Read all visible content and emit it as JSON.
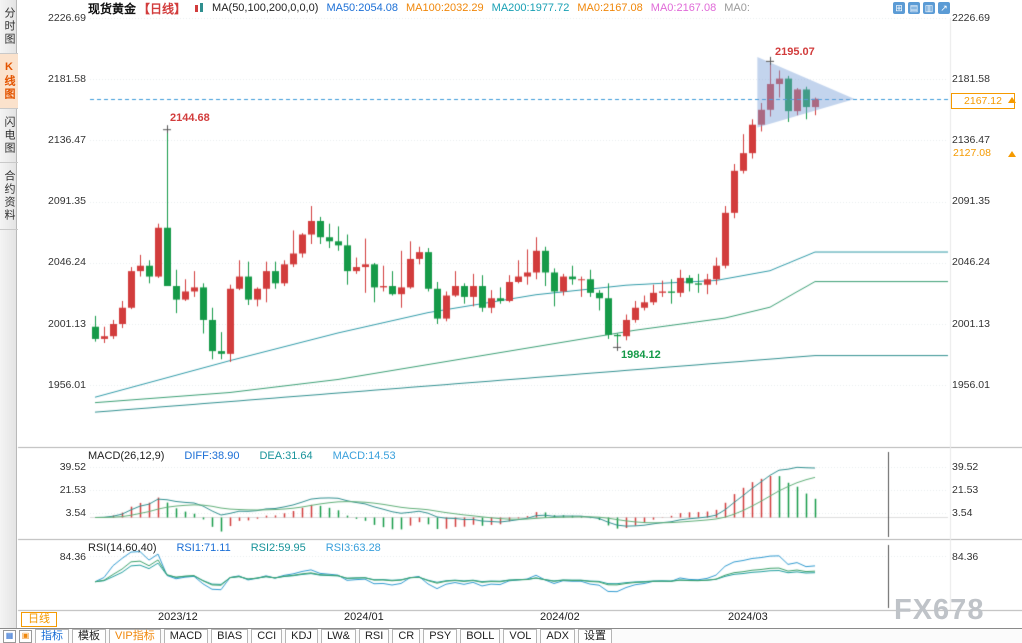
{
  "app": {
    "watermark": "FX678"
  },
  "sidebar": {
    "items": [
      {
        "label": "分时图"
      },
      {
        "label": "K线图"
      },
      {
        "label": "闪电图"
      },
      {
        "label": "合约资料"
      }
    ]
  },
  "header": {
    "symbol": "现货黄金",
    "period_tag": "【日线】",
    "ma_settings": "MA(50,100,200,0,0,0)",
    "ma_values": [
      {
        "label": "MA50:2054.08",
        "color": "#1b6fd6"
      },
      {
        "label": "MA100:2032.29",
        "color": "#f0870a"
      },
      {
        "label": "MA200:1977.72",
        "color": "#18a0b4"
      },
      {
        "label": "MA0:2167.08",
        "color": "#f0870a"
      },
      {
        "label": "MA0:2167.08",
        "color": "#e06ad8"
      },
      {
        "label": "MA0:",
        "color": "#9a9a9a"
      }
    ],
    "tool_icons": [
      {
        "name": "grid-plus-icon",
        "glyph": "⊞"
      },
      {
        "name": "hbar-chart-icon",
        "glyph": "▤"
      },
      {
        "name": "vbar-chart-icon",
        "glyph": "▥"
      },
      {
        "name": "trend-arrow-icon",
        "glyph": "↗"
      }
    ]
  },
  "macd_panel": {
    "title": "MACD(26,12,9)",
    "labels": [
      {
        "text": "DIFF:38.90",
        "color": "#1b6fd6"
      },
      {
        "text": "DEA:31.64",
        "color": "#18939a"
      },
      {
        "text": "MACD:14.53",
        "color": "#3aa0dc"
      }
    ]
  },
  "rsi_panel": {
    "title": "RSI(14,60,40)",
    "labels": [
      {
        "text": "RSI1:71.11",
        "color": "#1b6fd6"
      },
      {
        "text": "RSI2:59.95",
        "color": "#18939a"
      },
      {
        "text": "RSI3:63.28",
        "color": "#3aa0dc"
      }
    ]
  },
  "bottom": {
    "period_label": "日线",
    "period_icon_glyph": "▤",
    "toolbar_icons": [
      {
        "name": "indicator-grid-icon",
        "glyph": "▦"
      },
      {
        "name": "style-box-icon",
        "glyph": "▣"
      }
    ],
    "tabs": [
      {
        "label": "指标",
        "color": "#1b6fd6"
      },
      {
        "label": "模板"
      },
      {
        "label": "VIP指标",
        "color": "#f0870a"
      },
      {
        "label": "MACD"
      },
      {
        "label": "BIAS"
      },
      {
        "label": "CCI"
      },
      {
        "label": "KDJ"
      },
      {
        "label": "LW&"
      },
      {
        "label": "RSI"
      },
      {
        "label": "CR"
      },
      {
        "label": "PSY"
      },
      {
        "label": "BOLL"
      },
      {
        "label": "VOL"
      },
      {
        "label": "ADX"
      },
      {
        "label": "设置"
      }
    ]
  },
  "chart_data": {
    "type": "candlestick",
    "title": "现货黄金 日线 (Spot Gold, Daily)",
    "y_tick_labels": [
      "2226.69",
      "2181.58",
      "2136.47",
      "2091.35",
      "2046.24",
      "2001.13",
      "1956.01"
    ],
    "y_ticks": [
      2226.69,
      2181.58,
      2136.47,
      2091.35,
      2046.24,
      2001.13,
      1956.01
    ],
    "ylim": [
      1909,
      2226.69
    ],
    "grid": "dotted-horizontal",
    "current_price": 2167.12,
    "current_price_label": "2167.12",
    "reference_price_label": "2127.08",
    "month_ticks": [
      {
        "label": "2023/12",
        "index": 7
      },
      {
        "label": "2024/01",
        "index": 27
      },
      {
        "label": "2024/02",
        "index": 49
      },
      {
        "label": "2024/03",
        "index": 70
      }
    ],
    "annotations": [
      {
        "label": "2144.68",
        "price": 2144.68,
        "index": 8,
        "kind": "swing-high",
        "color": "#d23c3c"
      },
      {
        "label": "2195.07",
        "price": 2195.07,
        "index": 75,
        "kind": "swing-high",
        "color": "#d23c3c"
      },
      {
        "label": "1984.12",
        "price": 1984.12,
        "index": 58,
        "kind": "swing-low",
        "color": "#159a48"
      }
    ],
    "pattern": {
      "type": "pennant",
      "from_index": 73.6,
      "top": 2198,
      "bottom": 2146,
      "apex_index": 84.4,
      "apex": 2167,
      "fill": "rgba(122,160,214,0.45)"
    },
    "colors": {
      "up": "#d23c3c",
      "down": "#159a48",
      "price_line": "#3a9ad9"
    },
    "ohlc": [
      [
        1999,
        2007,
        1988,
        1990
      ],
      [
        1990,
        1999,
        1987,
        1992
      ],
      [
        1992,
        2004,
        1990,
        2001
      ],
      [
        2001,
        2018,
        1998,
        2013
      ],
      [
        2013,
        2043,
        2012,
        2040
      ],
      [
        2040,
        2052,
        2036,
        2044
      ],
      [
        2044,
        2048,
        2031,
        2036
      ],
      [
        2036,
        2075,
        2035,
        2072
      ],
      [
        2072,
        2144.68,
        2064,
        2029
      ],
      [
        2029,
        2041,
        2009,
        2019
      ],
      [
        2019,
        2034,
        2018,
        2025
      ],
      [
        2025,
        2040,
        2021,
        2028
      ],
      [
        2028,
        2031,
        1994,
        2004
      ],
      [
        2004,
        2013,
        1975,
        1981
      ],
      [
        1981,
        1995,
        1975,
        1979
      ],
      [
        1979,
        2030,
        1973,
        2027
      ],
      [
        2027,
        2048,
        2026,
        2036
      ],
      [
        2036,
        2047,
        2015,
        2019
      ],
      [
        2019,
        2028,
        2014,
        2027
      ],
      [
        2027,
        2047,
        2017,
        2040
      ],
      [
        2040,
        2047,
        2027,
        2031
      ],
      [
        2031,
        2048,
        2029,
        2045
      ],
      [
        2045,
        2070,
        2043,
        2053
      ],
      [
        2053,
        2068,
        2050,
        2067
      ],
      [
        2067,
        2088,
        2060,
        2077
      ],
      [
        2077,
        2080,
        2060,
        2065
      ],
      [
        2065,
        2075,
        2057,
        2062
      ],
      [
        2062,
        2073,
        2055,
        2059
      ],
      [
        2059,
        2067,
        2030,
        2040
      ],
      [
        2040,
        2050,
        2038,
        2043
      ],
      [
        2043,
        2064,
        2024,
        2045
      ],
      [
        2045,
        2046,
        2017,
        2028
      ],
      [
        2028,
        2044,
        2025,
        2029
      ],
      [
        2029,
        2040,
        2022,
        2023
      ],
      [
        2023,
        2055,
        2013,
        2028
      ],
      [
        2028,
        2062,
        2027,
        2049
      ],
      [
        2049,
        2058,
        2045,
        2054
      ],
      [
        2054,
        2057,
        2025,
        2027
      ],
      [
        2027,
        2032,
        2001,
        2005
      ],
      [
        2005,
        2025,
        2003,
        2022
      ],
      [
        2022,
        2040,
        2021,
        2029
      ],
      [
        2029,
        2031,
        2016,
        2021
      ],
      [
        2021,
        2038,
        2014,
        2029
      ],
      [
        2029,
        2037,
        2010,
        2013
      ],
      [
        2013,
        2026,
        2009,
        2020
      ],
      [
        2020,
        2028,
        2016,
        2018
      ],
      [
        2018,
        2037,
        2017,
        2032
      ],
      [
        2032,
        2048,
        2031,
        2036
      ],
      [
        2036,
        2056,
        2030,
        2039
      ],
      [
        2039,
        2065,
        2034,
        2055
      ],
      [
        2055,
        2058,
        2029,
        2039
      ],
      [
        2039,
        2042,
        2014,
        2025
      ],
      [
        2025,
        2038,
        2022,
        2036
      ],
      [
        2036,
        2044,
        2030,
        2034
      ],
      [
        2034,
        2036,
        2021,
        2034
      ],
      [
        2034,
        2041,
        2021,
        2024
      ],
      [
        2024,
        2026,
        2011,
        2020
      ],
      [
        2020,
        2031,
        1990,
        1993
      ],
      [
        1993,
        1994,
        1984.12,
        1992
      ],
      [
        1992,
        2008,
        1989,
        2004
      ],
      [
        2004,
        2018,
        2002,
        2013
      ],
      [
        2013,
        2022,
        2011,
        2017
      ],
      [
        2017,
        2030,
        2015,
        2024
      ],
      [
        2024,
        2033,
        2021,
        2025
      ],
      [
        2025,
        2034,
        2016,
        2024
      ],
      [
        2024,
        2041,
        2021,
        2035
      ],
      [
        2035,
        2037,
        2025,
        2031
      ],
      [
        2031,
        2038,
        2024,
        2030
      ],
      [
        2030,
        2038,
        2023,
        2034
      ],
      [
        2034,
        2050,
        2030,
        2044
      ],
      [
        2044,
        2088,
        2042,
        2083
      ],
      [
        2083,
        2119,
        2079,
        2114
      ],
      [
        2114,
        2141,
        2112,
        2127
      ],
      [
        2127,
        2152,
        2123,
        2148
      ],
      [
        2148,
        2164,
        2143,
        2159
      ],
      [
        2159,
        2195.07,
        2154,
        2178
      ],
      [
        2178,
        2188,
        2168,
        2182
      ],
      [
        2182,
        2184,
        2150,
        2158
      ],
      [
        2158,
        2175,
        2155,
        2174
      ],
      [
        2174,
        2176,
        2152,
        2161
      ],
      [
        2161,
        2168,
        2155,
        2167.12
      ]
    ],
    "ma_series": [
      {
        "name": "MA50",
        "color": "#2f9aa8",
        "values": [
          1947,
          1948.8,
          1950.6,
          1952.4,
          1954.2,
          1956,
          1957.8,
          1959.6,
          1961.4,
          1963.2,
          1965,
          1966.8,
          1968.6,
          1970.4,
          1972.2,
          1974,
          1975.7,
          1977.4,
          1979.1,
          1980.8,
          1982.5,
          1984.2,
          1985.9,
          1987.6,
          1989.3,
          1991,
          1992.7,
          1994.4,
          1995.9,
          1997.4,
          1998.9,
          2000.4,
          2001.9,
          2003.4,
          2004.9,
          2006.4,
          2007.9,
          2009.4,
          2010.5,
          2011.6,
          2012.7,
          2013.8,
          2014.9,
          2016,
          2017.1,
          2018.2,
          2019.3,
          2020.4,
          2021.5,
          2022.6,
          2023.3,
          2024,
          2024.7,
          2025.4,
          2026.1,
          2026.8,
          2027.5,
          2028.2,
          2028.9,
          2029.6,
          2030,
          2030.3,
          2030.7,
          2031,
          2031.4,
          2031.7,
          2032.1,
          2032.4,
          2032.8,
          2033.1,
          2034.3,
          2035.5,
          2036.7,
          2037.9,
          2039.1,
          2040.3,
          2043.1,
          2045.8,
          2048.6,
          2051.3,
          2054.08
        ]
      },
      {
        "name": "MA100",
        "color": "#3a9e74",
        "values": [
          1943,
          1943.5,
          1944,
          1944.5,
          1945,
          1945.5,
          1946,
          1946.5,
          1947,
          1947.5,
          1948,
          1948.5,
          1949,
          1949.5,
          1950,
          1950.5,
          1951.3,
          1952.1,
          1952.9,
          1953.7,
          1954.5,
          1955.3,
          1956.1,
          1956.9,
          1957.7,
          1958.5,
          1959.3,
          1960.1,
          1961.2,
          1962.3,
          1963.4,
          1964.5,
          1965.6,
          1966.7,
          1967.8,
          1968.9,
          1970,
          1971.1,
          1972.2,
          1973.3,
          1974.4,
          1975.5,
          1976.6,
          1977.7,
          1978.8,
          1979.9,
          1981,
          1982.1,
          1983.2,
          1984.3,
          1985.4,
          1986.5,
          1987.6,
          1988.7,
          1989.8,
          1990.9,
          1992,
          1993.1,
          1994.2,
          1995.3,
          1996.4,
          1997.3,
          1998.2,
          1999.1,
          2000,
          2000.9,
          2001.8,
          2002.7,
          2003.6,
          2004.5,
          2005.4,
          2007,
          2008.6,
          2010.2,
          2011.8,
          2013.4,
          2017.2,
          2021,
          2024.8,
          2028.5,
          2032.29
        ]
      },
      {
        "name": "MA200",
        "color": "#2f8f8f",
        "values": [
          1936,
          1936.5,
          1937,
          1937.6,
          1938.1,
          1938.6,
          1939.1,
          1939.7,
          1940.2,
          1940.7,
          1941.2,
          1941.7,
          1942.3,
          1942.8,
          1943.3,
          1943.8,
          1944.3,
          1944.9,
          1945.4,
          1945.9,
          1946.4,
          1947,
          1947.5,
          1948,
          1948.5,
          1949,
          1949.6,
          1950.1,
          1950.6,
          1951.1,
          1951.6,
          1952.2,
          1952.7,
          1953.2,
          1953.7,
          1954.3,
          1954.8,
          1955.3,
          1955.8,
          1956.3,
          1956.9,
          1957.4,
          1957.9,
          1958.4,
          1958.9,
          1959.5,
          1960,
          1960.5,
          1961,
          1961.6,
          1962.1,
          1962.6,
          1963.1,
          1963.6,
          1964.2,
          1964.7,
          1965.2,
          1965.7,
          1966.2,
          1966.8,
          1967.3,
          1967.8,
          1968.3,
          1968.9,
          1969.4,
          1969.9,
          1970.4,
          1970.9,
          1971.5,
          1972,
          1972.5,
          1973,
          1973.5,
          1974.1,
          1974.6,
          1975.1,
          1975.6,
          1976.2,
          1976.7,
          1977.2,
          1977.72
        ]
      }
    ],
    "macd": {
      "params": [
        26,
        12,
        9
      ],
      "diff": 38.9,
      "dea": 31.64,
      "macd": 14.53,
      "y_ticks": [
        39.52,
        21.53,
        3.54
      ],
      "tick_labels": [
        "39.52",
        "21.53",
        "3.54"
      ],
      "colors": [
        "#2f8f8f",
        "#5fae77"
      ]
    },
    "rsi": {
      "params": [
        14,
        60,
        40
      ],
      "latest": [
        71.11,
        59.95,
        63.28
      ],
      "y_ticks": [
        84.36
      ],
      "tick_labels": [
        "84.36"
      ],
      "colors": [
        "#2f9ad0",
        "#1f9e9e",
        "#3aa06a"
      ]
    }
  }
}
